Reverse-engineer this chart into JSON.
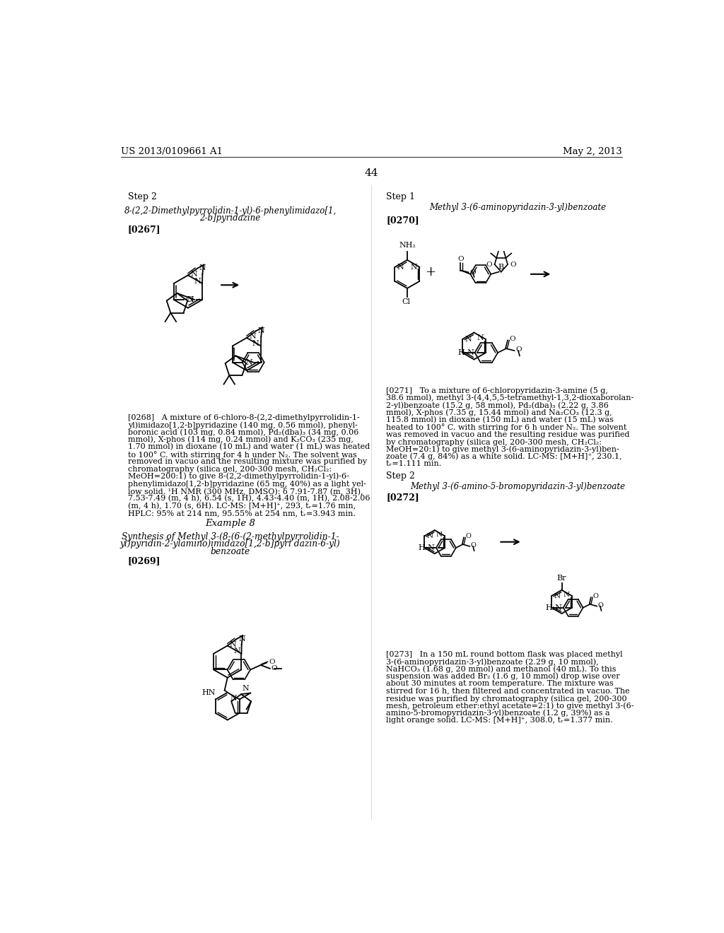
{
  "background_color": "#ffffff",
  "header_left": "US 2013/0109661 A1",
  "header_right": "May 2, 2013",
  "page_number": "44"
}
